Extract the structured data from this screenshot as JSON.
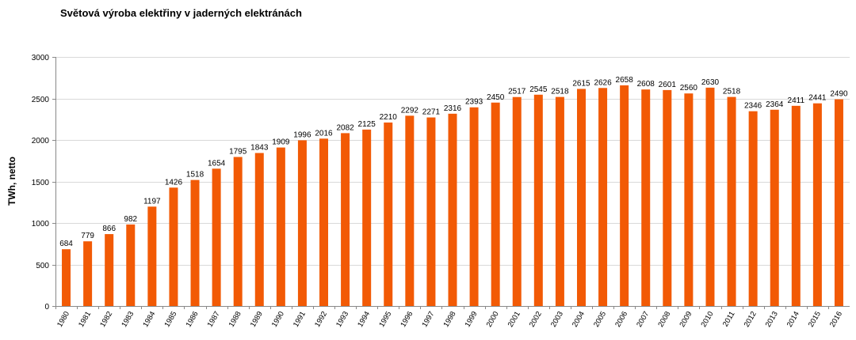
{
  "chart_data": {
    "type": "bar",
    "title": "Světová výroba elektřiny v jaderných elektránách",
    "xlabel": "",
    "ylabel": "TWh, netto",
    "ylim": [
      0,
      3000
    ],
    "yticks": [
      0,
      500,
      1000,
      1500,
      2000,
      2500,
      3000
    ],
    "grid": true,
    "bar_color": "#f25a05",
    "categories": [
      "1980",
      "1981",
      "1982",
      "1983",
      "1984",
      "1985",
      "1986",
      "1987",
      "1988",
      "1989",
      "1990",
      "1991",
      "1992",
      "1993",
      "1994",
      "1995",
      "1996",
      "1997",
      "1998",
      "1999",
      "2000",
      "2001",
      "2002",
      "2003",
      "2004",
      "2005",
      "2006",
      "2007",
      "2008",
      "2009",
      "2010",
      "2011",
      "2012",
      "2013",
      "2014",
      "2015",
      "2016"
    ],
    "values": [
      684,
      779,
      866,
      982,
      1197,
      1426,
      1518,
      1654,
      1795,
      1843,
      1909,
      1996,
      2016,
      2082,
      2125,
      2210,
      2292,
      2271,
      2316,
      2393,
      2450,
      2517,
      2545,
      2518,
      2615,
      2626,
      2658,
      2608,
      2601,
      2560,
      2630,
      2518,
      2346,
      2364,
      2411,
      2441,
      2490
    ]
  }
}
